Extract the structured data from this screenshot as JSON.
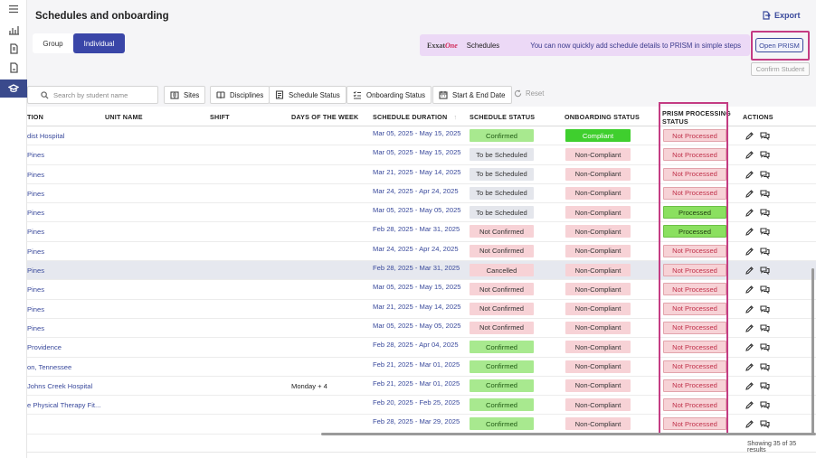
{
  "page": {
    "title": "Schedules and onboarding",
    "export_label": "Export"
  },
  "toggle": {
    "group_label": "Group",
    "individual_label": "Individual",
    "active": "Individual"
  },
  "banner": {
    "brand_main": "Exxat",
    "brand_accent": "One",
    "section": "Schedules",
    "message": "You can now quickly add schedule details to PRISM in simple steps"
  },
  "actions": {
    "open_prism": "Open PRISM",
    "confirm_student": "Confirm Student"
  },
  "filters": {
    "search_placeholder": "Search by student name",
    "sites": "Sites",
    "disciplines": "Disciplines",
    "schedule_status": "Schedule Status",
    "onboarding_status": "Onboarding Status",
    "date_range": "Start & End Date",
    "reset": "Reset"
  },
  "table": {
    "headers": {
      "location": "TION",
      "unit_name": "UNIT NAME",
      "shift": "SHIFT",
      "days": "DAYS OF THE WEEK",
      "duration": "SCHEDULE DURATION",
      "schedule_status": "SCHEDULE STATUS",
      "onboarding_status": "ONBOARDING STATUS",
      "prism_status_line1": "PRISM PROCESSING",
      "prism_status_line2": "STATUS",
      "actions": "ACTIONS"
    },
    "rows": [
      {
        "location": "dist Hospital",
        "days": "",
        "duration": "Mar 05, 2025 - May 15, 2025",
        "schedule_status": "Confirmed",
        "onboarding_status": "Compliant",
        "prism": "Not Processed"
      },
      {
        "location": "Pines",
        "days": "",
        "duration": "Mar 05, 2025 - May 15, 2025",
        "schedule_status": "To be Scheduled",
        "onboarding_status": "Non-Compliant",
        "prism": "Not Processed"
      },
      {
        "location": "Pines",
        "days": "",
        "duration": "Mar 21, 2025 - May 14, 2025",
        "schedule_status": "To be Scheduled",
        "onboarding_status": "Non-Compliant",
        "prism": "Not Processed"
      },
      {
        "location": "Pines",
        "days": "",
        "duration": "Mar 24, 2025 - Apr 24, 2025",
        "schedule_status": "To be Scheduled",
        "onboarding_status": "Non-Compliant",
        "prism": "Not Processed"
      },
      {
        "location": "Pines",
        "days": "",
        "duration": "Mar 05, 2025 - May 05, 2025",
        "schedule_status": "To be Scheduled",
        "onboarding_status": "Non-Compliant",
        "prism": "Processed"
      },
      {
        "location": "Pines",
        "days": "",
        "duration": "Feb 28, 2025 - Mar 31, 2025",
        "schedule_status": "Not Confirmed",
        "onboarding_status": "Non-Compliant",
        "prism": "Processed"
      },
      {
        "location": "Pines",
        "days": "",
        "duration": "Mar 24, 2025 - Apr 24, 2025",
        "schedule_status": "Not Confirmed",
        "onboarding_status": "Non-Compliant",
        "prism": "Not Processed"
      },
      {
        "location": "Pines",
        "days": "",
        "duration": "Feb 28, 2025 - Mar 31, 2025",
        "schedule_status": "Cancelled",
        "onboarding_status": "Non-Compliant",
        "prism": "Not Processed"
      },
      {
        "location": "Pines",
        "days": "",
        "duration": "Mar 05, 2025 - May 15, 2025",
        "schedule_status": "Not Confirmed",
        "onboarding_status": "Non-Compliant",
        "prism": "Not Processed"
      },
      {
        "location": "Pines",
        "days": "",
        "duration": "Mar 21, 2025 - May 14, 2025",
        "schedule_status": "Not Confirmed",
        "onboarding_status": "Non-Compliant",
        "prism": "Not Processed"
      },
      {
        "location": "Pines",
        "days": "",
        "duration": "Mar 05, 2025 - May 05, 2025",
        "schedule_status": "Not Confirmed",
        "onboarding_status": "Non-Compliant",
        "prism": "Not Processed"
      },
      {
        "location": "Providence",
        "days": "",
        "duration": "Feb 28, 2025 - Apr 04, 2025",
        "schedule_status": "Confirmed",
        "onboarding_status": "Non-Compliant",
        "prism": "Not Processed"
      },
      {
        "location": "on, Tennessee",
        "days": "",
        "duration": "Feb 21, 2025 - Mar 01, 2025",
        "schedule_status": "Confirmed",
        "onboarding_status": "Non-Compliant",
        "prism": "Not Processed"
      },
      {
        "location": "Johns Creek Hospital",
        "days": "Monday  + 4",
        "duration": "Feb 21, 2025 - Mar 01, 2025",
        "schedule_status": "Confirmed",
        "onboarding_status": "Non-Compliant",
        "prism": "Not Processed"
      },
      {
        "location": "e Physical Therapy Fit...",
        "days": "",
        "duration": "Feb 20, 2025 - Feb 25, 2025",
        "schedule_status": "Confirmed",
        "onboarding_status": "Non-Compliant",
        "prism": "Not Processed"
      },
      {
        "location": "",
        "days": "",
        "duration": "Feb 28, 2025 - Mar 29, 2025",
        "schedule_status": "Confirmed",
        "onboarding_status": "Non-Compliant",
        "prism": "Not Processed"
      }
    ]
  },
  "footer": {
    "results": "Showing 35 of 35 results"
  },
  "colors": {
    "primary": "#3a46a8",
    "highlight_frame": "#c43c83",
    "confirmed_bg": "#a8e98f",
    "compliant_bg": "#3fcf2e",
    "pending_bg": "#e4e6ec",
    "noncompliant_bg": "#f7d2d6",
    "processed_bg": "#8be060"
  }
}
